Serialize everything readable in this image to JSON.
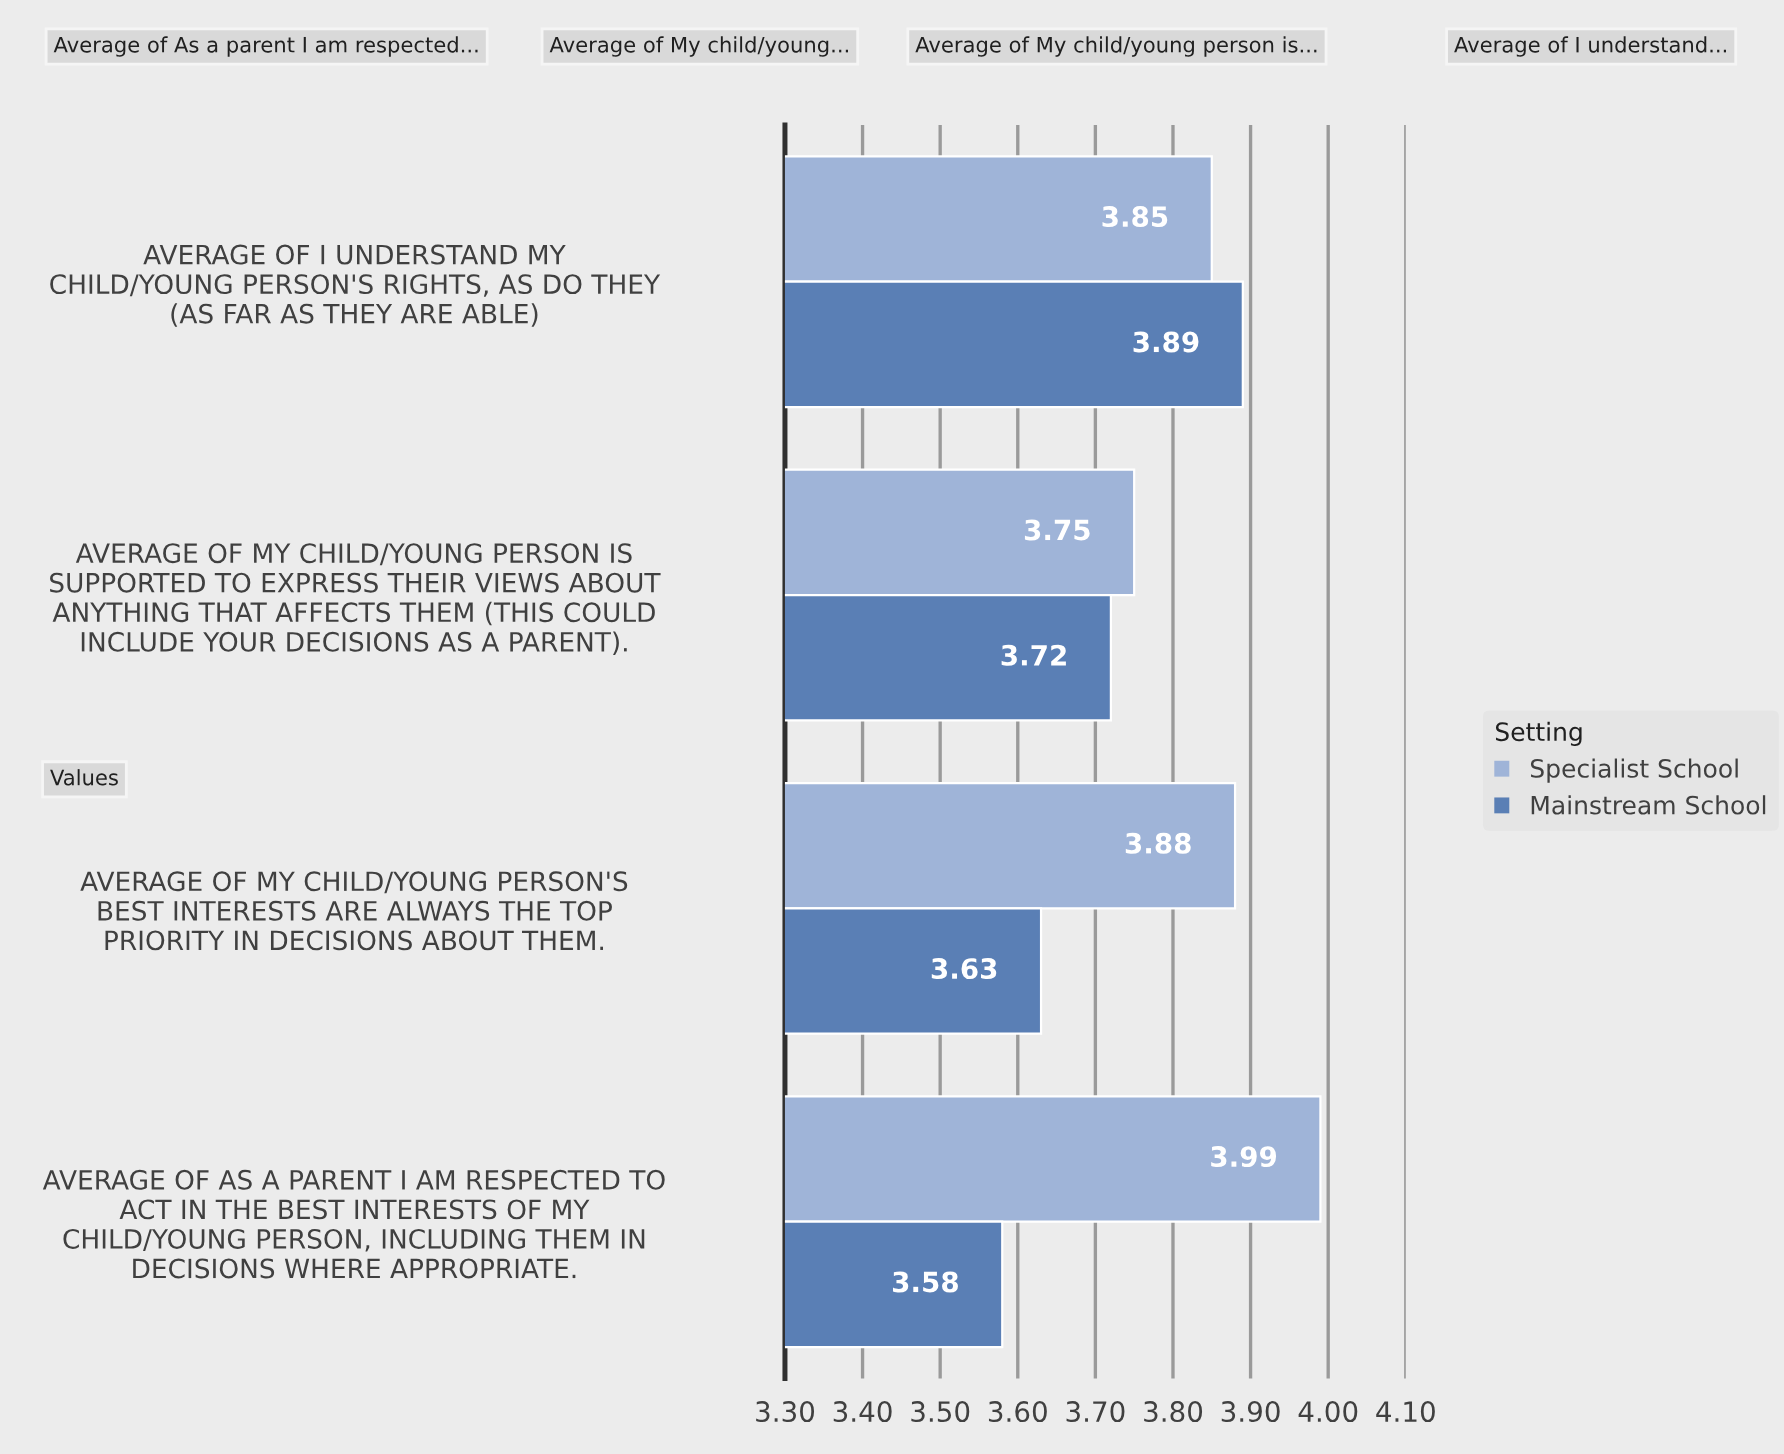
{
  "chart_data": {
    "type": "bar",
    "orientation": "horizontal",
    "categories": [
      "AVERAGE OF I UNDERSTAND MY\nCHILD/YOUNG PERSON'S RIGHTS, AS DO THEY\n(AS FAR AS THEY ARE ABLE)",
      "AVERAGE OF MY CHILD/YOUNG PERSON IS\nSUPPORTED TO EXPRESS THEIR VIEWS ABOUT\nANYTHING THAT AFFECTS THEM (THIS COULD\nINCLUDE YOUR DECISIONS AS A PARENT).",
      "AVERAGE OF MY CHILD/YOUNG PERSON'S\nBEST INTERESTS ARE ALWAYS THE TOP\nPRIORITY IN DECISIONS ABOUT THEM.",
      "AVERAGE OF AS A PARENT I AM RESPECTED TO\nACT IN THE BEST INTERESTS OF MY\nCHILD/YOUNG PERSON, INCLUDING THEM IN\nDECISIONS WHERE APPROPRIATE."
    ],
    "series": [
      {
        "name": "Specialist School",
        "color": "#9fb4d8",
        "values": [
          3.85,
          3.75,
          3.88,
          3.99
        ]
      },
      {
        "name": "Mainstream School",
        "color": "#5a7fb5",
        "values": [
          3.89,
          3.72,
          3.63,
          3.58
        ]
      }
    ],
    "xlim": [
      3.3,
      4.1
    ],
    "xticks": [
      {
        "value": 3.3,
        "label": "3.30"
      },
      {
        "value": 3.4,
        "label": "3.40"
      },
      {
        "value": 3.5,
        "label": "3.50"
      },
      {
        "value": 3.6,
        "label": "3.60"
      },
      {
        "value": 3.7,
        "label": "3.70"
      },
      {
        "value": 3.8,
        "label": "3.80"
      },
      {
        "value": 3.9,
        "label": "3.90"
      },
      {
        "value": 4.0,
        "label": "4.00"
      },
      {
        "value": 4.1,
        "label": "4.10"
      }
    ],
    "grid": "x",
    "data_labels": true,
    "legend": "right",
    "legend_title": "Setting",
    "annotations": [
      "Average of As a parent I am respected...",
      "Average of My child/young...",
      "Average of My child/young person is...",
      "Average of I understand...",
      "Values"
    ]
  }
}
